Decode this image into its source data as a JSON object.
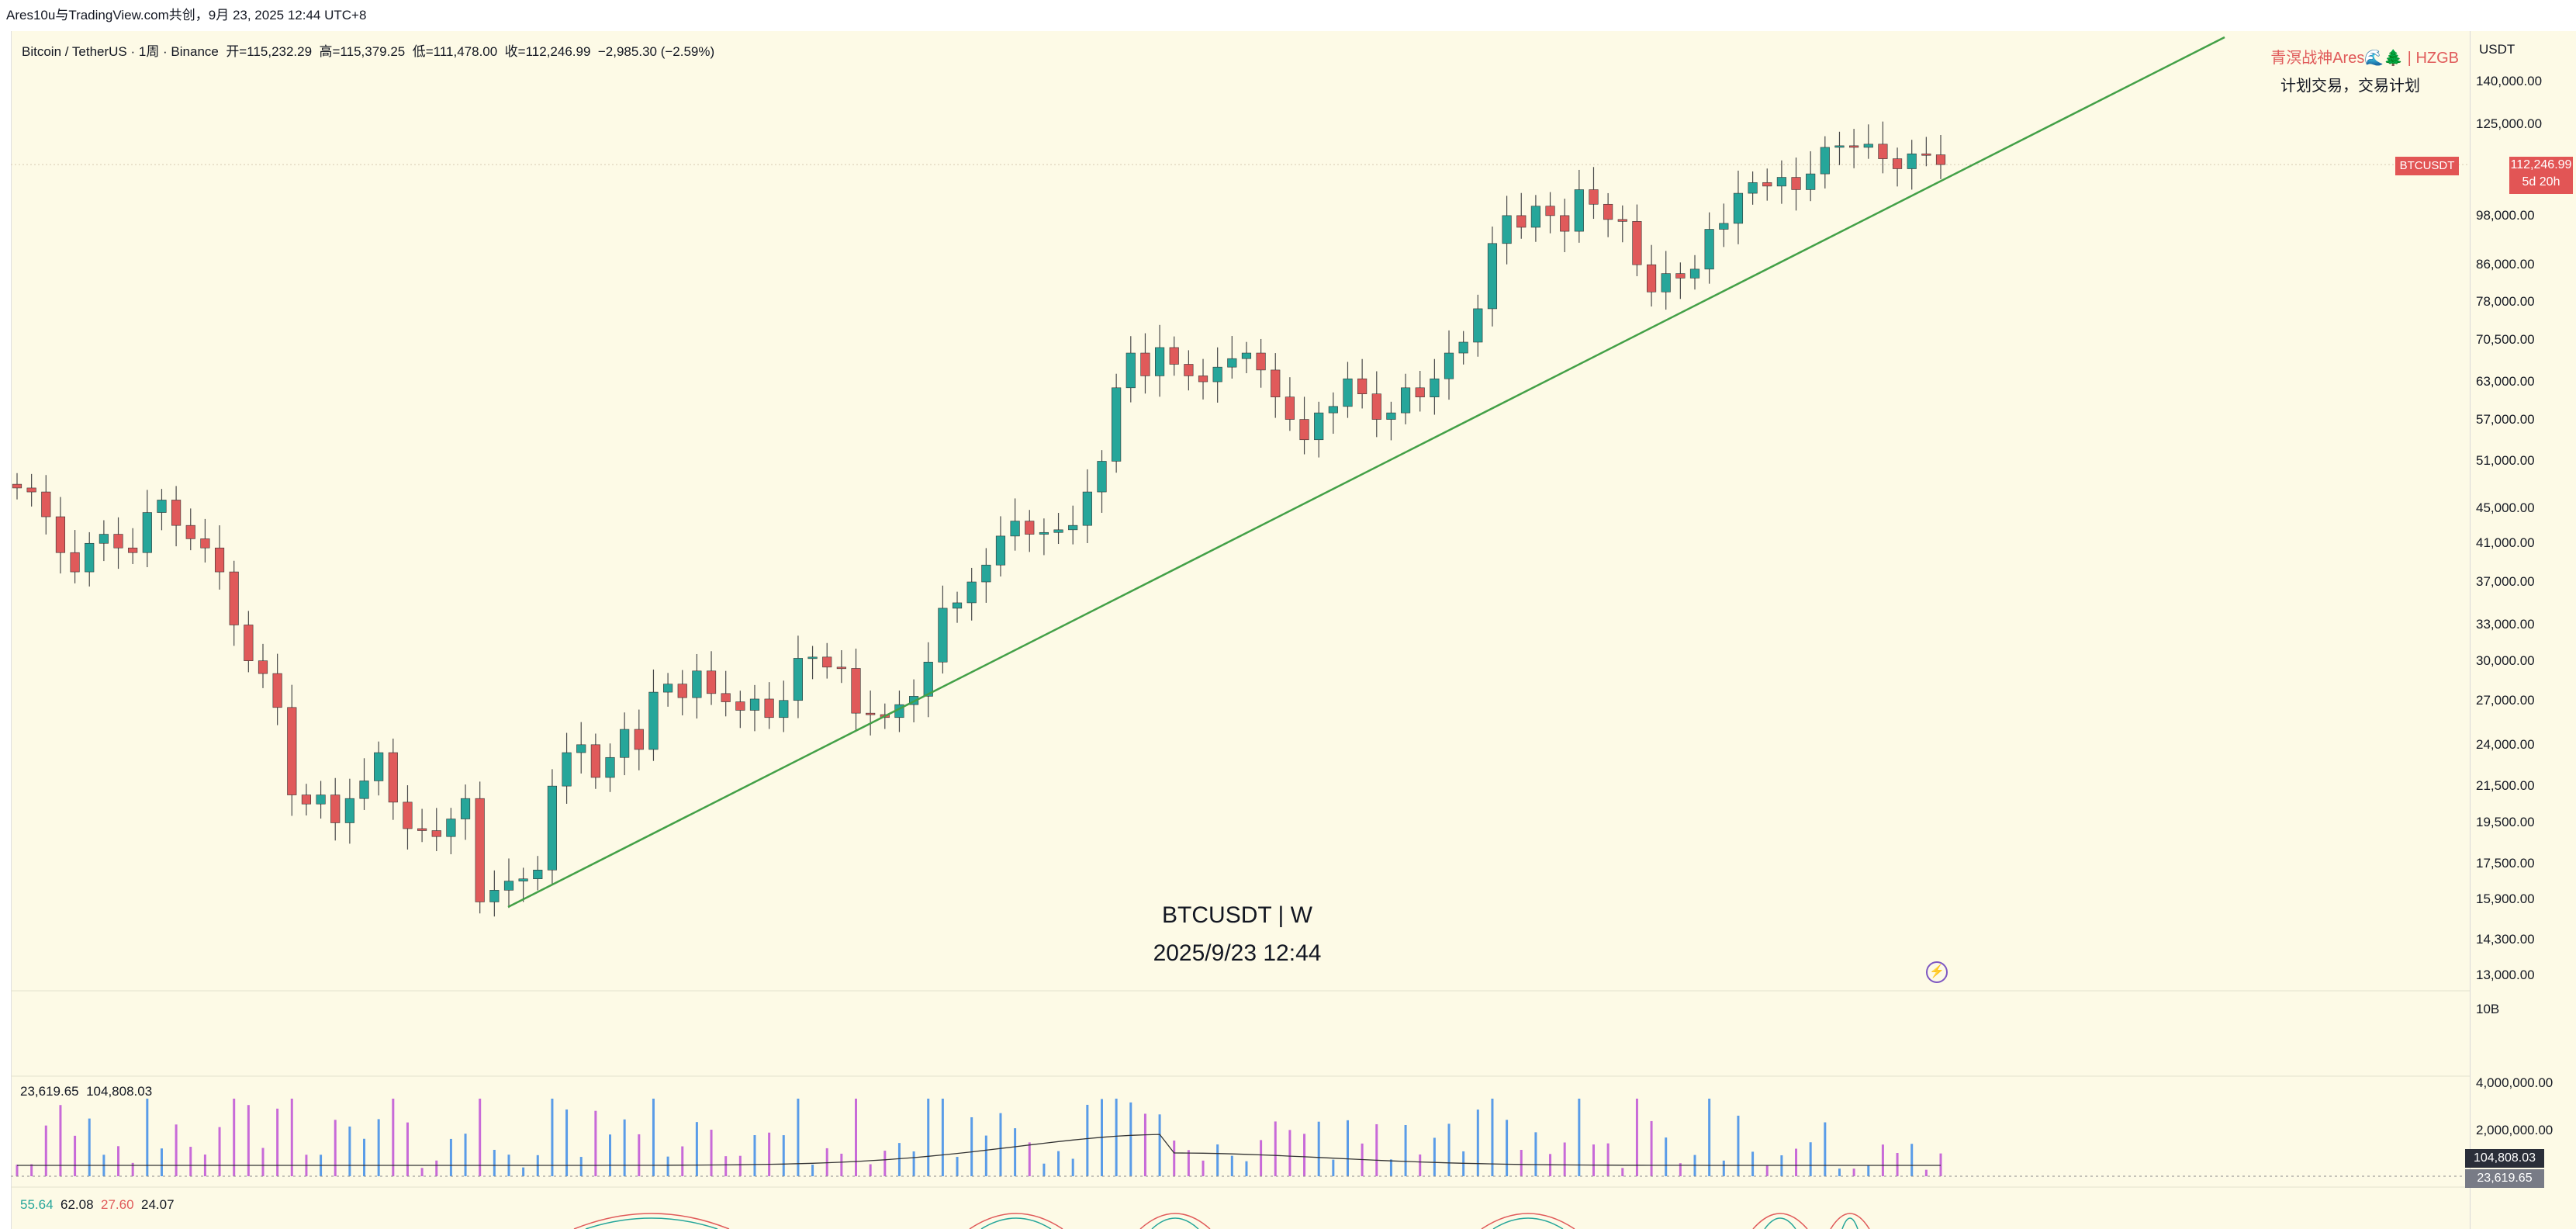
{
  "header": {
    "caption": "Ares10u与TradingView.com共创，9月 23, 2025 12:44 UTC+8"
  },
  "legend": {
    "symbol": "Bitcoin / TetherUS · 1周 · Binance",
    "open": "开=115,232.29",
    "high": "高=115,379.25",
    "low": "低=111,478.00",
    "close": "收=112,246.99",
    "change": "−2,985.30 (−2.59%)"
  },
  "watermark": {
    "line1": "BTCUSDT | W",
    "line2": "2025/9/23 12:44"
  },
  "brand": {
    "line1": "青溟战神Ares🌊🌲 | HZGB",
    "line2": "计划交易，交易计划"
  },
  "price_scale": {
    "currency": "USDT",
    "labels": [
      "140,000.00",
      "125,000.00",
      "98,000.00",
      "86,000.00",
      "78,000.00",
      "70,500.00",
      "63,000.00",
      "57,000.00",
      "51,000.00",
      "45,000.00",
      "41,000.00",
      "37,000.00",
      "33,000.00",
      "30,000.00",
      "27,000.00",
      "24,000.00",
      "21,500.00",
      "19,500.00",
      "17,500.00",
      "15,900.00",
      "14,300.00",
      "13,000.00"
    ],
    "last_symbol": "BTCUSDT",
    "last_price": "112,246.99",
    "countdown": "5d 20h"
  },
  "volume_pane": {
    "ma_value": "23,619.65",
    "vol_value": "104,808.03",
    "scale_labels": [
      "10B",
      "4,000,000.00",
      "2,000,000.00"
    ],
    "box_vol": "104,808.03",
    "box_ma": "23,619.65"
  },
  "rsi_pane": {
    "values": [
      "55.64",
      "62.08",
      "27.60",
      "24.07"
    ],
    "colors": [
      "#26a69a",
      "#131722",
      "#e05a5a",
      "#131722"
    ]
  },
  "colors": {
    "up": "#26a69a",
    "down": "#e05a5a",
    "trendline": "#43a047",
    "background": "#fdfae6"
  },
  "chart_data": {
    "type": "candlestick",
    "timeframe": "1W",
    "symbol": "BTCUSDT",
    "yscale": "log",
    "ylim": [
      13000,
      150000
    ],
    "candles_approx_close": [
      47500,
      47000,
      44000,
      40000,
      38000,
      41000,
      42000,
      40500,
      40000,
      44500,
      46000,
      43000,
      41500,
      40500,
      38000,
      33000,
      30000,
      29000,
      26500,
      21000,
      20500,
      21000,
      19500,
      20800,
      21800,
      23500,
      20600,
      19200,
      19100,
      18800,
      19700,
      20800,
      15800,
      16300,
      16700,
      16800,
      17200,
      21500,
      23500,
      24000,
      22000,
      23200,
      25000,
      23700,
      27600,
      28200,
      27200,
      29200,
      27500,
      26900,
      26300,
      27100,
      25800,
      27000,
      30200,
      30300,
      29500,
      29400,
      26100,
      26000,
      25800,
      26700,
      27300,
      29900,
      34500,
      35000,
      37000,
      38700,
      41800,
      43500,
      42000,
      42200,
      42500,
      43000,
      47000,
      51000,
      62000,
      68000,
      64000,
      69000,
      66000,
      64000,
      63000,
      65500,
      67000,
      68000,
      65000,
      60500,
      57000,
      54000,
      58000,
      59000,
      63500,
      61000,
      57000,
      58000,
      62000,
      60500,
      63500,
      68000,
      70000,
      76500,
      91000,
      98000,
      95000,
      100500,
      98000,
      94000,
      105000,
      101000,
      97000,
      96500,
      86000,
      80000,
      84000,
      83000,
      85000,
      94500,
      96000,
      104000,
      107000,
      106000,
      108500,
      105000,
      109500,
      117500,
      118000,
      117500,
      118500,
      114000,
      111000,
      115500,
      115200,
      112247
    ],
    "trendline": {
      "from_price": 15500,
      "to_price": 140000,
      "direction": "rising"
    }
  }
}
